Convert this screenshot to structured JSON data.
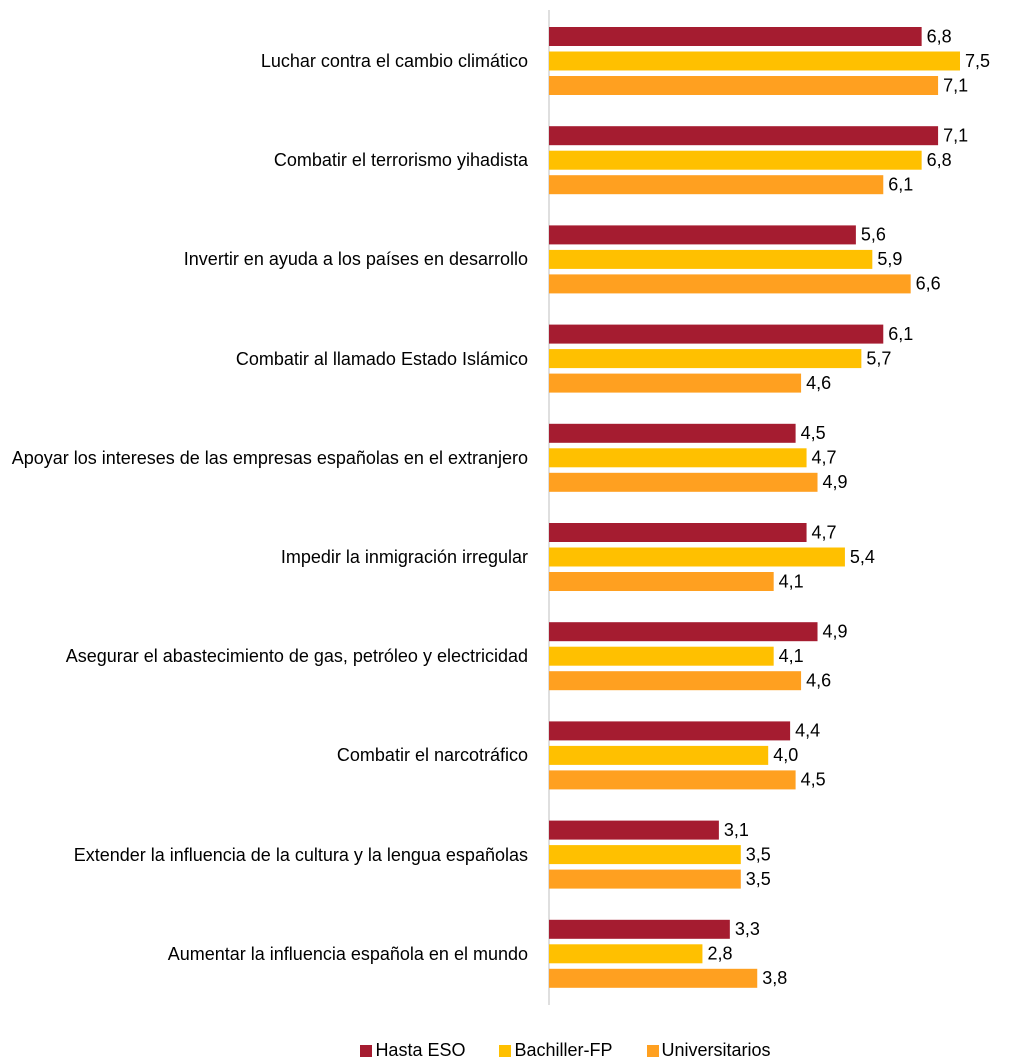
{
  "chart_data": {
    "type": "bar",
    "orientation": "horizontal",
    "categories": [
      "Luchar contra el cambio climático",
      "Combatir el terrorismo yihadista",
      "Invertir en ayuda a los países en desarrollo",
      "Combatir al llamado Estado Islámico",
      "Apoyar los intereses de las empresas españolas en el extranjero",
      "Impedir la inmigración irregular",
      "Asegurar el abastecimiento de gas, petróleo y electricidad",
      "Combatir el narcotráfico",
      "Extender la influencia de la cultura y la lengua españolas",
      "Aumentar la influencia española en el mundo"
    ],
    "series": [
      {
        "name": "Hasta ESO",
        "color": "#a51c30",
        "values": [
          6.8,
          7.1,
          5.6,
          6.1,
          4.5,
          4.7,
          4.9,
          4.4,
          3.1,
          3.3
        ],
        "value_labels": [
          "6,8",
          "7,1",
          "5,6",
          "6,1",
          "4,5",
          "4,7",
          "4,9",
          "4,4",
          "3,1",
          "3,3"
        ]
      },
      {
        "name": "Bachiller-FP",
        "color": "#ffc000",
        "values": [
          7.5,
          6.8,
          5.9,
          5.7,
          4.7,
          5.4,
          4.1,
          4.0,
          3.5,
          2.8
        ],
        "value_labels": [
          "7,5",
          "6,8",
          "5,9",
          "5,7",
          "4,7",
          "5,4",
          "4,1",
          "4,0",
          "3,5",
          "2,8"
        ]
      },
      {
        "name": "Universitarios",
        "color": "#ffa020",
        "values": [
          7.1,
          6.1,
          6.6,
          4.6,
          4.9,
          4.1,
          4.6,
          4.5,
          3.5,
          3.8
        ],
        "value_labels": [
          "7,1",
          "6,1",
          "6,6",
          "4,6",
          "4,9",
          "4,1",
          "4,6",
          "4,5",
          "3,5",
          "3,8"
        ]
      }
    ],
    "legend": "bottom"
  }
}
